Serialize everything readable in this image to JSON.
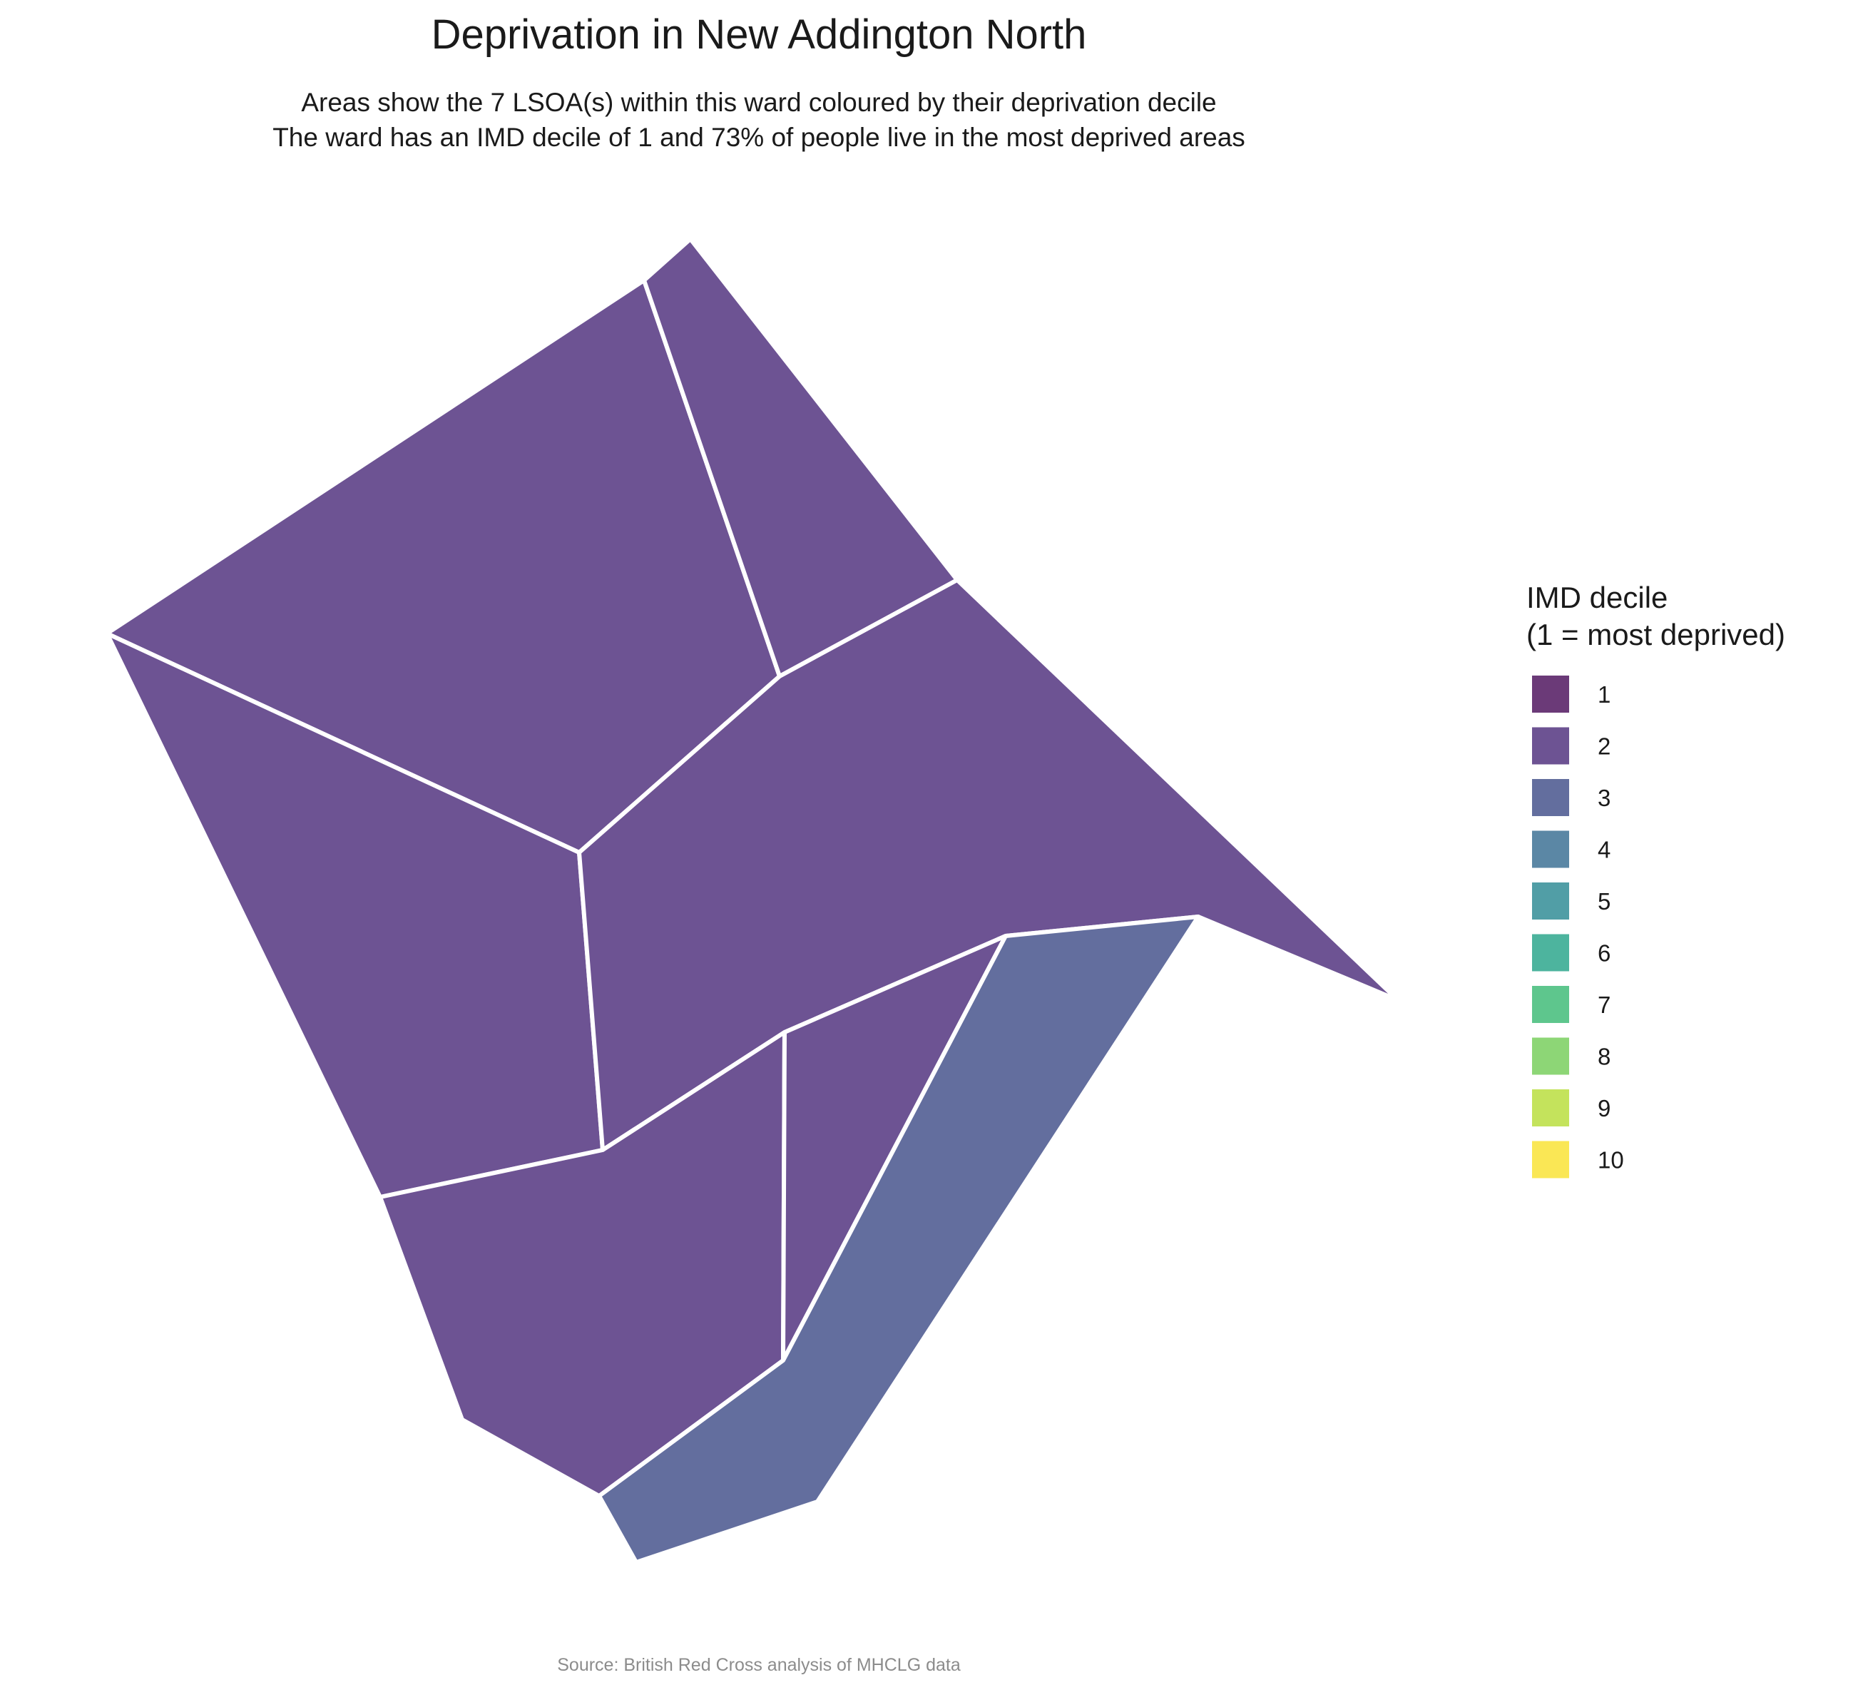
{
  "title": "Deprivation in New Addington North",
  "subtitle_lines": [
    "Areas show the 7 LSOA(s) within this ward coloured by their deprivation decile",
    "The ward has an IMD decile of 1 and 73% of people live in the most deprived areas"
  ],
  "caption": "Source: British Red Cross analysis of MHCLG data",
  "legend": {
    "title_lines": [
      "IMD decile",
      "(1 = most deprived)"
    ],
    "entries": [
      {
        "label": "1",
        "color": "#6b3a78"
      },
      {
        "label": "2",
        "color": "#6d5393"
      },
      {
        "label": "3",
        "color": "#636e9e"
      },
      {
        "label": "4",
        "color": "#5b87a5"
      },
      {
        "label": "5",
        "color": "#519ea6"
      },
      {
        "label": "6",
        "color": "#4db49e"
      },
      {
        "label": "7",
        "color": "#5ec68d"
      },
      {
        "label": "8",
        "color": "#8dd676"
      },
      {
        "label": "9",
        "color": "#c4e35c"
      },
      {
        "label": "10",
        "color": "#fae755"
      }
    ]
  },
  "areas": [
    {
      "id": "lsoa-north-west",
      "decile": 2
    },
    {
      "id": "lsoa-north",
      "decile": 2
    },
    {
      "id": "lsoa-west",
      "decile": 2
    },
    {
      "id": "lsoa-central-east",
      "decile": 2
    },
    {
      "id": "lsoa-south-west",
      "decile": 2
    },
    {
      "id": "lsoa-south-central",
      "decile": 2
    },
    {
      "id": "lsoa-south-east",
      "decile": 3
    }
  ]
}
